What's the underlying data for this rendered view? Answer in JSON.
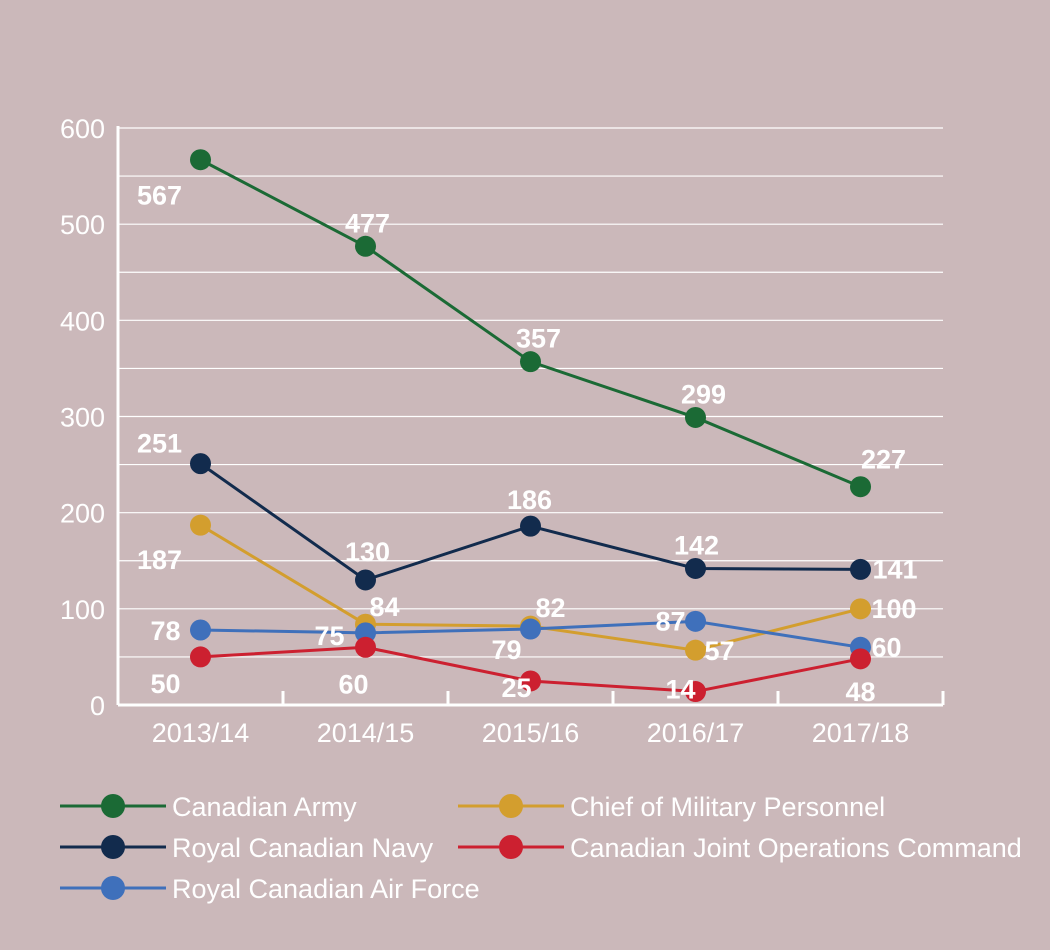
{
  "chart_data": {
    "type": "line",
    "title": "",
    "xlabel": "",
    "ylabel": "",
    "categories": [
      "2013/14",
      "2014/15",
      "2015/16",
      "2016/17",
      "2017/18"
    ],
    "ylim": [
      0,
      600
    ],
    "yticks": [
      "0",
      "100",
      "200",
      "300",
      "400",
      "500",
      "600"
    ],
    "grid": true,
    "legend_position": "bottom",
    "series": [
      {
        "key": "army",
        "name": "Canadian Army",
        "color": "#1b6a35",
        "values": [
          567,
          477,
          357,
          299,
          227
        ],
        "labels": [
          "567",
          "477",
          "357",
          "299",
          "227"
        ]
      },
      {
        "key": "navy",
        "name": "Royal Canadian Navy",
        "color": "#122b4d",
        "values": [
          251,
          130,
          186,
          142,
          141
        ],
        "labels": [
          "251",
          "130",
          "186",
          "142",
          "141"
        ]
      },
      {
        "key": "cmp",
        "name": "Chief of Military Personnel",
        "color": "#d39e2e",
        "values": [
          187,
          84,
          82,
          57,
          100
        ],
        "labels": [
          "187",
          "84",
          "82",
          "57",
          "100"
        ]
      },
      {
        "key": "rcaf",
        "name": "Royal Canadian Air Force",
        "color": "#3f70bb",
        "values": [
          78,
          75,
          79,
          87,
          60
        ],
        "labels": [
          "78",
          "75",
          "79",
          "87",
          "60"
        ]
      },
      {
        "key": "cjoc",
        "name": "Canadian Joint Operations Command",
        "color": "#cc2030",
        "values": [
          50,
          60,
          25,
          14,
          48
        ],
        "labels": [
          "50",
          "60",
          "25",
          "14",
          "48"
        ]
      }
    ],
    "legend": [
      {
        "series": "army",
        "label": "Canadian Army"
      },
      {
        "series": "cmp",
        "label": "Chief of Military Personnel"
      },
      {
        "series": "navy",
        "label": "Royal Canadian Navy"
      },
      {
        "series": "cjoc",
        "label": "Canadian Joint Operations Command"
      },
      {
        "series": "rcaf",
        "label": "Royal Canadian Air Force"
      }
    ]
  }
}
